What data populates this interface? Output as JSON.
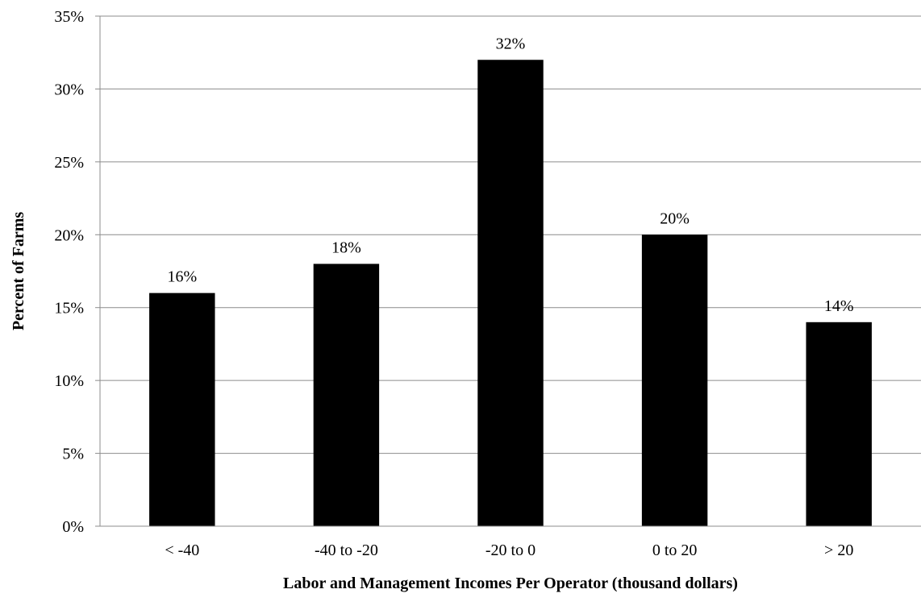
{
  "chart_data": {
    "type": "bar",
    "categories": [
      "< -40",
      "-40 to -20",
      "-20 to 0",
      "0 to 20",
      "> 20"
    ],
    "values": [
      16,
      18,
      32,
      20,
      14
    ],
    "data_labels": [
      "16%",
      "18%",
      "32%",
      "20%",
      "14%"
    ],
    "xlabel": "Labor and Management Incomes Per Operator (thousand dollars)",
    "ylabel": "Percent of Farms",
    "ylim": [
      0,
      35
    ],
    "yticks": [
      0,
      5,
      10,
      15,
      20,
      25,
      30,
      35
    ],
    "ytick_labels": [
      "0%",
      "5%",
      "10%",
      "15%",
      "20%",
      "25%",
      "30%",
      "35%"
    ],
    "grid": true,
    "legend": "none",
    "bar_color": "#000000"
  }
}
